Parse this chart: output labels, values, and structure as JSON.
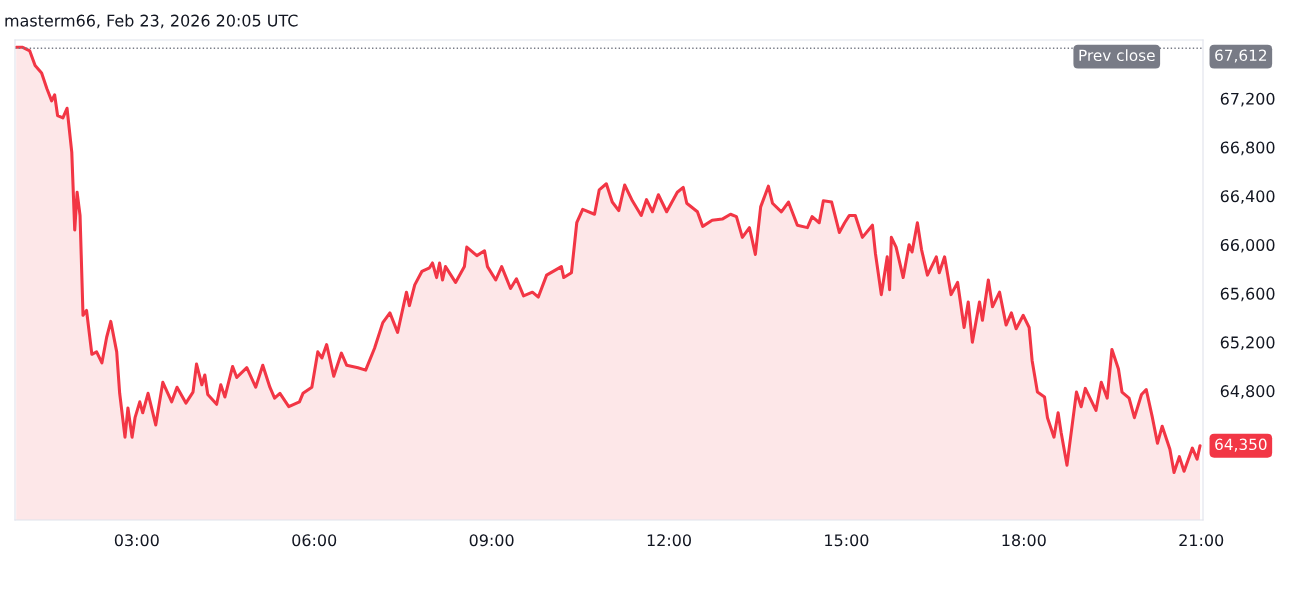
{
  "chart_data": {
    "type": "area",
    "title": "masterm66, Feb 23, 2026 20:05 UTC",
    "series": [
      {
        "color": "#f23645",
        "x": [
          0.96,
          1.07,
          1.19,
          1.28,
          1.39,
          1.48,
          1.56,
          1.61,
          1.66,
          1.75,
          1.82,
          1.9,
          1.95,
          1.99,
          2.04,
          2.09,
          2.15,
          2.24,
          2.32,
          2.41,
          2.49,
          2.56,
          2.66,
          2.71,
          2.8,
          2.85,
          2.92,
          2.97,
          3.05,
          3.1,
          3.19,
          3.32,
          3.44,
          3.59,
          3.68,
          3.83,
          3.95,
          4.01,
          4.1,
          4.15,
          4.2,
          4.35,
          4.42,
          4.49,
          4.62,
          4.69,
          4.86,
          5.01,
          5.13,
          5.25,
          5.33,
          5.42,
          5.57,
          5.75,
          5.81,
          5.96,
          6.06,
          6.13,
          6.21,
          6.33,
          6.46,
          6.55,
          6.74,
          6.87,
          7.02,
          7.16,
          7.28,
          7.41,
          7.56,
          7.61,
          7.7,
          7.82,
          7.95,
          8.0,
          8.07,
          8.12,
          8.17,
          8.22,
          8.39,
          8.54,
          8.58,
          8.75,
          8.88,
          8.93,
          9.07,
          9.17,
          9.32,
          9.42,
          9.54,
          9.69,
          9.79,
          9.93,
          10.18,
          10.22,
          10.35,
          10.44,
          10.54,
          10.74,
          10.82,
          10.94,
          11.04,
          11.15,
          11.25,
          11.38,
          11.53,
          11.62,
          11.72,
          11.82,
          11.96,
          12.14,
          12.24,
          12.3,
          12.48,
          12.57,
          12.73,
          12.9,
          13.04,
          13.14,
          13.24,
          13.36,
          13.46,
          13.55,
          13.68,
          13.75,
          13.9,
          14.02,
          14.17,
          14.34,
          14.42,
          14.54,
          14.61,
          14.75,
          14.88,
          14.97,
          15.05,
          15.15,
          15.27,
          15.44,
          15.49,
          15.59,
          15.69,
          15.73,
          15.76,
          15.84,
          15.96,
          16.06,
          16.11,
          16.2,
          16.27,
          16.37,
          16.52,
          16.57,
          16.66,
          16.77,
          16.88,
          16.99,
          17.06,
          17.13,
          17.25,
          17.3,
          17.4,
          17.47,
          17.59,
          17.7,
          17.79,
          17.87,
          17.99,
          18.09,
          18.14,
          18.23,
          18.35,
          18.4,
          18.51,
          18.58,
          18.63,
          18.73,
          18.89,
          18.97,
          19.04,
          19.22,
          19.31,
          19.41,
          19.49,
          19.6,
          19.66,
          19.78,
          19.87,
          19.99,
          20.07,
          20.17,
          20.26,
          20.34,
          20.47,
          20.54,
          20.63,
          20.71,
          20.85,
          20.93,
          20.98
        ],
        "values": [
          67620,
          67620,
          67590,
          67470,
          67410,
          67280,
          67180,
          67230,
          67060,
          67040,
          67120,
          66760,
          66120,
          66430,
          66240,
          65420,
          65460,
          65100,
          65120,
          65030,
          65240,
          65370,
          65120,
          64780,
          64420,
          64660,
          64420,
          64580,
          64710,
          64620,
          64780,
          64520,
          64870,
          64710,
          64830,
          64700,
          64790,
          65020,
          64850,
          64930,
          64770,
          64690,
          64850,
          64750,
          65000,
          64910,
          64990,
          64830,
          65010,
          64830,
          64740,
          64780,
          64670,
          64710,
          64780,
          64830,
          65120,
          65070,
          65180,
          64920,
          65110,
          65010,
          64990,
          64970,
          65150,
          65360,
          65440,
          65280,
          65610,
          65500,
          65670,
          65780,
          65810,
          65850,
          65730,
          65850,
          65710,
          65820,
          65690,
          65820,
          65980,
          65910,
          65950,
          65820,
          65710,
          65820,
          65640,
          65720,
          65580,
          65610,
          65570,
          65750,
          65820,
          65730,
          65770,
          66180,
          66290,
          66250,
          66450,
          66500,
          66350,
          66280,
          66490,
          66360,
          66240,
          66370,
          66270,
          66410,
          66270,
          66430,
          66470,
          66340,
          66270,
          66150,
          66200,
          66210,
          66250,
          66230,
          66060,
          66140,
          65920,
          66310,
          66480,
          66340,
          66270,
          66350,
          66160,
          66140,
          66230,
          66180,
          66360,
          66350,
          66100,
          66180,
          66240,
          66240,
          66060,
          66160,
          65930,
          65590,
          65900,
          65630,
          66060,
          65980,
          65730,
          66000,
          65940,
          66180,
          65960,
          65750,
          65900,
          65770,
          65900,
          65590,
          65690,
          65320,
          65530,
          65200,
          65530,
          65380,
          65710,
          65490,
          65610,
          65340,
          65440,
          65310,
          65420,
          65320,
          65050,
          64790,
          64750,
          64580,
          64420,
          64620,
          64460,
          64190,
          64790,
          64670,
          64820,
          64640,
          64870,
          64740,
          65140,
          64980,
          64790,
          64740,
          64580,
          64770,
          64810,
          64590,
          64370,
          64510,
          64320,
          64130,
          64260,
          64140,
          64330,
          64240,
          64350
        ]
      }
    ],
    "xlim": [
      0.94,
      21.03
    ],
    "xticks": [
      {
        "value": 3,
        "label": "03:00"
      },
      {
        "value": 6,
        "label": "06:00"
      },
      {
        "value": 9,
        "label": "09:00"
      },
      {
        "value": 12,
        "label": "12:00"
      },
      {
        "value": 15,
        "label": "15:00"
      },
      {
        "value": 18,
        "label": "18:00"
      },
      {
        "value": 21,
        "label": "21:00"
      }
    ],
    "ylim": [
      63740,
      67680
    ],
    "yticks": [
      {
        "value": 64800,
        "label": "64,800"
      },
      {
        "value": 65200,
        "label": "65,200"
      },
      {
        "value": 65600,
        "label": "65,600"
      },
      {
        "value": 66000,
        "label": "66,000"
      },
      {
        "value": 66400,
        "label": "66,400"
      },
      {
        "value": 66800,
        "label": "66,800"
      },
      {
        "value": 67200,
        "label": "67,200"
      }
    ],
    "ref_lines": [
      {
        "axis": "y",
        "value": 67612,
        "label": "Prev close",
        "color": "#787b86",
        "line_style": "dotted"
      }
    ],
    "annotations": [
      "67,612",
      "64,350"
    ],
    "grid": false,
    "legend": false
  }
}
